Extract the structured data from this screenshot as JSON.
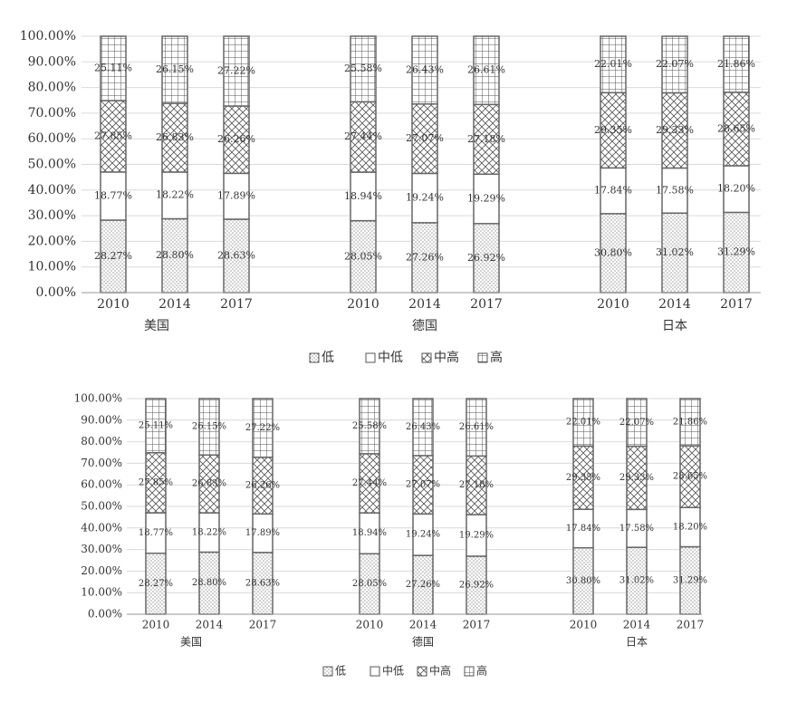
{
  "chart_data": [
    {
      "type": "stacked_bar",
      "categories": [
        "2010",
        "2014",
        "2017",
        "2010",
        "2014",
        "2017",
        "2010",
        "2014",
        "2017"
      ],
      "category_groups": [
        "美国",
        "德国",
        "日本"
      ],
      "ylim": [
        0,
        100
      ],
      "yticks": [
        {
          "value": 0,
          "label": "0.00%"
        },
        {
          "value": 10,
          "label": "10.00%"
        },
        {
          "value": 20,
          "label": "20.00%"
        },
        {
          "value": 30,
          "label": "30.00%"
        },
        {
          "value": 40,
          "label": "40.00%"
        },
        {
          "value": 50,
          "label": "50.00%"
        },
        {
          "value": 60,
          "label": "60.00%"
        },
        {
          "value": 70,
          "label": "70.00%"
        },
        {
          "value": 80,
          "label": "80.00%"
        },
        {
          "value": 90,
          "label": "90.00%"
        },
        {
          "value": 100,
          "label": "100.00%"
        }
      ],
      "grid": true,
      "legend": "bottom",
      "series": [
        {
          "name": "低",
          "color": "#ffffff",
          "pattern": "dots",
          "values": [
            28.27,
            28.8,
            28.63,
            28.05,
            27.26,
            26.92,
            30.8,
            31.02,
            31.29
          ],
          "value_labels": [
            "28.27%",
            "28.80%",
            "28.63%",
            "28.05%",
            "27.26%",
            "26.92%",
            "30.80%",
            "31.02%",
            "31.29%"
          ]
        },
        {
          "name": "中低",
          "color": "#ffffff",
          "pattern": "none",
          "values": [
            18.77,
            18.22,
            17.89,
            18.94,
            19.24,
            19.29,
            17.84,
            17.58,
            18.2
          ],
          "value_labels": [
            "18.77%",
            "18.22%",
            "17.89%",
            "18.94%",
            "19.24%",
            "19.29%",
            "17.84%",
            "17.58%",
            "18.20%"
          ]
        },
        {
          "name": "中高",
          "color": "#ffffff",
          "pattern": "crosshatch",
          "values": [
            27.85,
            26.83,
            26.26,
            27.44,
            27.07,
            27.18,
            29.35,
            29.33,
            28.65
          ],
          "value_labels": [
            "27.85%",
            "26.83%",
            "26.26%",
            "27.44%",
            "27.07%",
            "27.18%",
            "29.35%",
            "29.33%",
            "28.65%"
          ]
        },
        {
          "name": "高",
          "color": "#ffffff",
          "pattern": "grid",
          "values": [
            25.11,
            26.15,
            27.22,
            25.58,
            26.43,
            26.61,
            22.01,
            22.07,
            21.86
          ],
          "value_labels": [
            "25.11%",
            "26.15%",
            "27.22%",
            "25.58%",
            "26.43%",
            "26.61%",
            "22.01%",
            "22.07%",
            "21.86%"
          ]
        }
      ]
    },
    {
      "type": "stacked_bar",
      "categories": [
        "2010",
        "2014",
        "2017",
        "2010",
        "2014",
        "2017",
        "2010",
        "2014",
        "2017"
      ],
      "category_groups": [
        "美国",
        "德国",
        "日本"
      ],
      "ylim": [
        0,
        100
      ],
      "yticks": [
        {
          "value": 0,
          "label": "0.00%"
        },
        {
          "value": 10,
          "label": "10.00%"
        },
        {
          "value": 20,
          "label": "20.00%"
        },
        {
          "value": 30,
          "label": "30.00%"
        },
        {
          "value": 40,
          "label": "40.00%"
        },
        {
          "value": 50,
          "label": "50.00%"
        },
        {
          "value": 60,
          "label": "60.00%"
        },
        {
          "value": 70,
          "label": "70.00%"
        },
        {
          "value": 80,
          "label": "80.00%"
        },
        {
          "value": 90,
          "label": "90.00%"
        },
        {
          "value": 100,
          "label": "100.00%"
        }
      ],
      "grid": true,
      "legend": "bottom",
      "series": [
        {
          "name": "低",
          "color": "#ffffff",
          "pattern": "dots",
          "values": [
            28.27,
            28.8,
            28.63,
            28.05,
            27.26,
            26.92,
            30.8,
            31.02,
            31.29
          ],
          "value_labels": [
            "28.27%",
            "28.80%",
            "28.63%",
            "28.05%",
            "27.26%",
            "26.92%",
            "30.80%",
            "31.02%",
            "31.29%"
          ]
        },
        {
          "name": "中低",
          "color": "#ffffff",
          "pattern": "none",
          "values": [
            18.77,
            18.22,
            17.89,
            18.94,
            19.24,
            19.29,
            17.84,
            17.58,
            18.2
          ],
          "value_labels": [
            "18.77%",
            "18.22%",
            "17.89%",
            "18.94%",
            "19.24%",
            "19.29%",
            "17.84%",
            "17.58%",
            "18.20%"
          ]
        },
        {
          "name": "中高",
          "color": "#ffffff",
          "pattern": "crosshatch",
          "values": [
            27.85,
            26.83,
            26.26,
            27.44,
            27.07,
            27.18,
            29.35,
            29.33,
            28.65
          ],
          "value_labels": [
            "27.85%",
            "26.83%",
            "26.26%",
            "27.44%",
            "27.07%",
            "27.18%",
            "29.35%",
            "29.33%",
            "28.65%"
          ]
        },
        {
          "name": "高",
          "color": "#ffffff",
          "pattern": "grid",
          "values": [
            25.11,
            26.15,
            27.22,
            25.58,
            26.43,
            26.61,
            22.01,
            22.07,
            21.86
          ],
          "value_labels": [
            "25.11%",
            "26.15%",
            "27.22%",
            "25.58%",
            "26.43%",
            "26.61%",
            "22.01%",
            "22.07%",
            "21.86%"
          ]
        }
      ]
    }
  ]
}
